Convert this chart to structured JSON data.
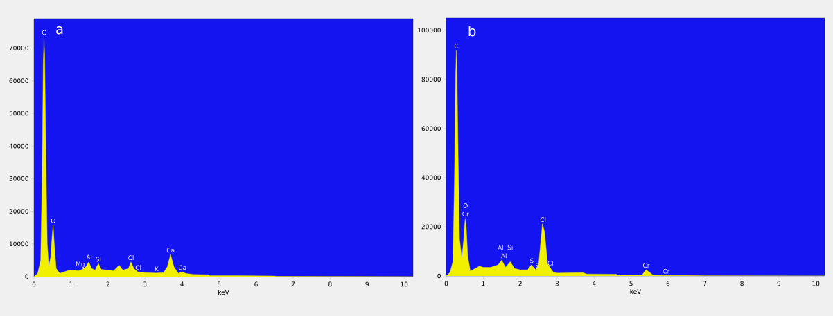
{
  "chart_data": [
    {
      "type": "area",
      "xlabel": "keV",
      "color": "#f0f000",
      "x": [
        0,
        0.1,
        0.18,
        0.22,
        0.25,
        0.27,
        0.29,
        0.32,
        0.36,
        0.4,
        0.45,
        0.5,
        0.52,
        0.55,
        0.6,
        0.7,
        0.9,
        1.0,
        1.2,
        1.3,
        1.4,
        1.48,
        1.56,
        1.65,
        1.74,
        1.82,
        2.0,
        2.15,
        2.3,
        2.4,
        2.55,
        2.62,
        2.7,
        2.8,
        3.0,
        3.3,
        3.5,
        3.6,
        3.69,
        3.78,
        3.9,
        4.0,
        4.1,
        4.3,
        4.7,
        4.75,
        5.5,
        6.5,
        6.55,
        8,
        10.24
      ],
      "values": [
        0,
        1000,
        5000,
        30000,
        65000,
        73500,
        68000,
        40000,
        10000,
        3000,
        6000,
        14000,
        15800,
        10000,
        2500,
        1000,
        1800,
        2000,
        1800,
        2200,
        3000,
        4500,
        2500,
        2000,
        4000,
        2200,
        2000,
        1800,
        3500,
        2000,
        2500,
        4500,
        2500,
        1500,
        1200,
        1100,
        1200,
        3000,
        6800,
        3000,
        1000,
        1500,
        1000,
        700,
        600,
        300,
        300,
        200,
        100,
        50,
        0
      ],
      "xlim": [
        0,
        10.24
      ],
      "ylim": [
        0,
        79000
      ],
      "xticks": [
        0,
        1,
        2,
        3,
        4,
        5,
        6,
        7,
        8,
        9,
        10
      ],
      "yticks": [
        0,
        10000,
        20000,
        30000,
        40000,
        50000,
        60000,
        70000
      ],
      "annotations": [
        "a",
        {
          "text": "C",
          "x": 0.27,
          "y": 73500
        },
        {
          "text": "O",
          "x": 0.52,
          "y": 15800
        },
        {
          "text": "Mg",
          "x": 1.25,
          "y": 2200
        },
        {
          "text": "Al",
          "x": 1.49,
          "y": 4500
        },
        {
          "text": "Si",
          "x": 1.74,
          "y": 4000
        },
        {
          "text": "Cl",
          "x": 2.62,
          "y": 4500
        },
        {
          "text": "Cl",
          "x": 2.82,
          "y": 1500
        },
        {
          "text": "K",
          "x": 3.31,
          "y": 1100
        },
        {
          "text": "Ca",
          "x": 3.69,
          "y": 6800
        },
        {
          "text": "Ca",
          "x": 4.01,
          "y": 1500
        }
      ]
    },
    {
      "type": "area",
      "xlabel": "keV",
      "color": "#f0f000",
      "x": [
        0,
        0.1,
        0.18,
        0.22,
        0.25,
        0.27,
        0.29,
        0.32,
        0.36,
        0.42,
        0.47,
        0.51,
        0.54,
        0.58,
        0.65,
        0.9,
        1.0,
        1.2,
        1.3,
        1.4,
        1.5,
        1.6,
        1.73,
        1.85,
        2.0,
        2.2,
        2.3,
        2.42,
        2.5,
        2.6,
        2.66,
        2.74,
        2.8,
        2.9,
        3.0,
        3.7,
        3.8,
        4.6,
        4.65,
        5.3,
        5.4,
        5.5,
        5.6,
        6.0,
        6.5,
        7,
        10.24
      ],
      "values": [
        0,
        1500,
        6000,
        40000,
        80000,
        91900,
        85000,
        50000,
        15000,
        7000,
        15000,
        23500,
        20000,
        8000,
        2000,
        4000,
        3500,
        3500,
        4000,
        4500,
        6500,
        3500,
        5800,
        3000,
        2500,
        2500,
        4500,
        2500,
        5000,
        21200,
        18000,
        5000,
        3500,
        1500,
        1200,
        1300,
        800,
        700,
        300,
        400,
        2600,
        1500,
        300,
        200,
        200,
        50,
        0
      ],
      "xlim": [
        0,
        10.24
      ],
      "ylim": [
        0,
        105000
      ],
      "xticks": [
        0,
        1,
        2,
        3,
        4,
        5,
        6,
        7,
        8,
        9,
        10
      ],
      "yticks": [
        0,
        20000,
        40000,
        60000,
        80000,
        100000
      ],
      "annotations": [
        "b",
        {
          "text": "C",
          "x": 0.27,
          "y": 91900
        },
        {
          "text": "Cr",
          "x": 0.52,
          "y": 23500
        },
        {
          "text": "O",
          "x": 0.52,
          "y": 23500
        },
        {
          "text": "Al",
          "x": 1.56,
          "y": 6500
        },
        {
          "text": "Al",
          "x": 1.47,
          "y": 6500
        },
        {
          "text": "Si",
          "x": 1.73,
          "y": 5800
        },
        {
          "text": "S",
          "x": 2.31,
          "y": 4500
        },
        {
          "text": "S",
          "x": 2.46,
          "y": 2500
        },
        {
          "text": "Cl",
          "x": 2.62,
          "y": 21200
        },
        {
          "text": "Cl",
          "x": 2.82,
          "y": 3500
        },
        {
          "text": "Cr",
          "x": 5.41,
          "y": 2600
        },
        {
          "text": "Cr",
          "x": 5.95,
          "y": 200
        }
      ]
    }
  ]
}
